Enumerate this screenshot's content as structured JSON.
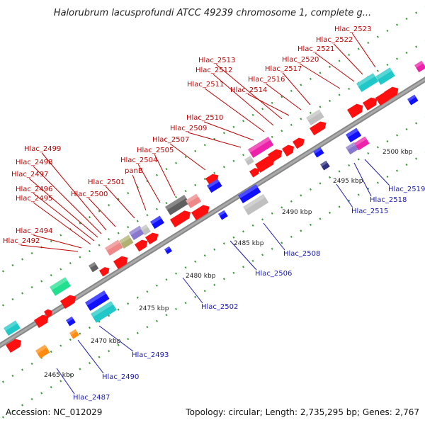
{
  "title": "Halorubrum lacusprofundi ATCC 49239 chromosome 1, complete g...",
  "footer": {
    "accession": "Accession: NC_012029",
    "topology": "Topology: circular; Length: 2,735,295 bp; Genes: 2,767"
  },
  "colors": {
    "red": "#ff1010",
    "blue": "#1010ff",
    "cyan": "#20c8c8",
    "gray": "#606060",
    "lightgray": "#c0c0c0",
    "pink": "#ee8888",
    "magenta": "#ee22aa",
    "purple": "#8877cc",
    "olive": "#b0b070",
    "green": "#20e090",
    "orange": "#ff8c10",
    "navy": "#303080",
    "labelRed": "#c00000",
    "labelBlue": "#1a1ab0"
  },
  "ticks": [
    "2465 kbp",
    "2470 kbp",
    "2475 kbp",
    "2480 kbp",
    "2485 kbp",
    "2490 kbp",
    "2495 kbp",
    "2500 kbp"
  ],
  "upperLabels": [
    "Hlac_2492",
    "Hlac_2494",
    "Hlac_2495",
    "Hlac_2496",
    "Hlac_2497",
    "Hlac_2498",
    "Hlac_2499",
    "Hlac_2500",
    "Hlac_2501",
    "panB",
    "Hlac_2504",
    "Hlac_2505",
    "Hlac_2507",
    "Hlac_2509",
    "Hlac_2510",
    "Hlac_2511",
    "Hlac_2512",
    "Hlac_2513",
    "Hlac_2514",
    "Hlac_2516",
    "Hlac_2517",
    "Hlac_2520",
    "Hlac_2521",
    "Hlac_2522",
    "Hlac_2523"
  ],
  "lowerLabels": [
    "Hlac_2487",
    "Hlac_2490",
    "Hlac_2493",
    "Hlac_2502",
    "Hlac_2506",
    "Hlac_2508",
    "Hlac_2515",
    "Hlac_2518",
    "Hlac_2519"
  ]
}
